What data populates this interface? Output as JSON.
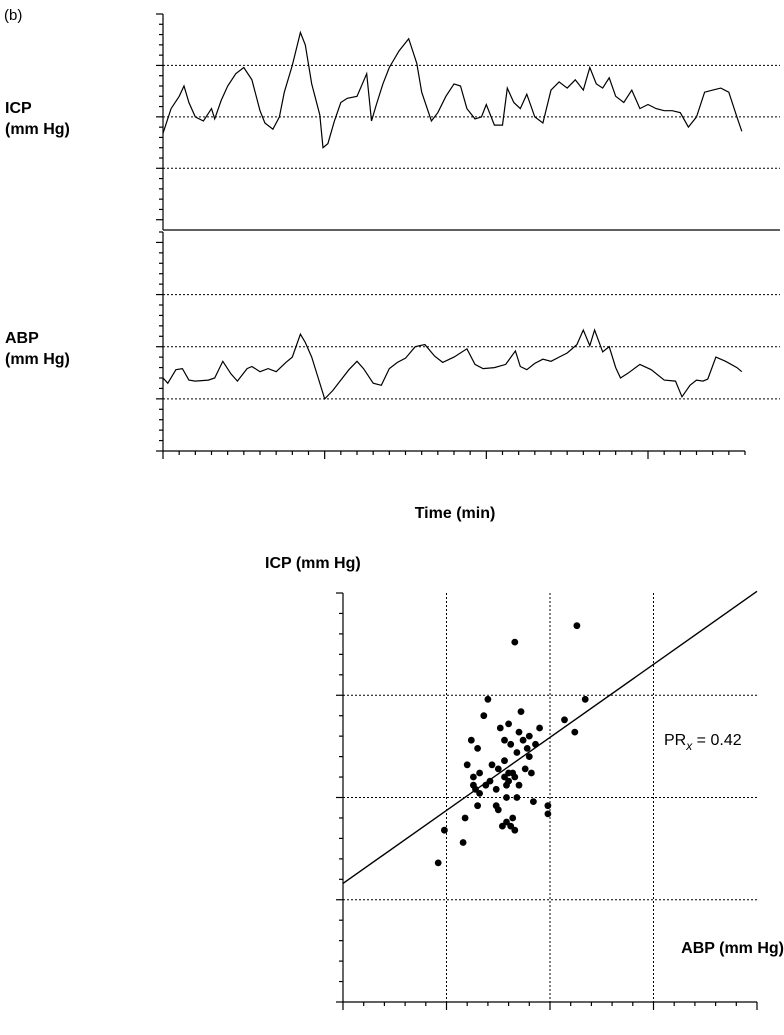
{
  "panel_label": "(b)",
  "chart_data": [
    {
      "type": "line",
      "title": "",
      "ylabel": [
        "ICP",
        "(mm Hg)"
      ],
      "xlabel": "",
      "ylim": [
        9.5,
        20
      ],
      "yticks": [
        "20",
        "17.5",
        "15",
        "12.5",
        "10"
      ],
      "ytick_values": [
        20,
        17.5,
        15,
        12.5,
        10
      ],
      "ygrid": [
        17.5,
        15,
        12.5
      ],
      "x_range": [
        0,
        3.6
      ],
      "series": [
        {
          "x": [
            0,
            0.05,
            0.1,
            0.13,
            0.16,
            0.2,
            0.25,
            0.3,
            0.32,
            0.36,
            0.4,
            0.45,
            0.5,
            0.55,
            0.6,
            0.63,
            0.68,
            0.72,
            0.75,
            0.8,
            0.85,
            0.88,
            0.92,
            0.97,
            0.99,
            1.02,
            1.06,
            1.1,
            1.14,
            1.2,
            1.26,
            1.29,
            1.32,
            1.36,
            1.4,
            1.46,
            1.52,
            1.57,
            1.6,
            1.66,
            1.7,
            1.75,
            1.8,
            1.84,
            1.88,
            1.93,
            1.97,
            2.0,
            2.05,
            2.1,
            2.13,
            2.17,
            2.21,
            2.25,
            2.3,
            2.35,
            2.4,
            2.45,
            2.5,
            2.55,
            2.6,
            2.64,
            2.68,
            2.72,
            2.76,
            2.8,
            2.85,
            2.9,
            2.95,
            3.0,
            3.05,
            3.1,
            3.15,
            3.2,
            3.25,
            3.3,
            3.35,
            3.4,
            3.45,
            3.5,
            3.55,
            3.58
          ],
          "y": [
            14.2,
            15.4,
            16.0,
            16.5,
            15.7,
            15.0,
            14.8,
            15.4,
            14.9,
            15.8,
            16.5,
            17.1,
            17.4,
            16.8,
            15.3,
            14.7,
            14.4,
            15.0,
            16.2,
            17.5,
            19.1,
            18.5,
            16.6,
            15.1,
            13.5,
            13.7,
            14.8,
            15.7,
            15.9,
            16.0,
            17.1,
            14.8,
            15.6,
            16.6,
            17.4,
            18.2,
            18.8,
            17.6,
            16.2,
            14.8,
            15.2,
            16.0,
            16.6,
            16.5,
            15.4,
            14.9,
            15.0,
            15.6,
            14.6,
            14.6,
            16.4,
            15.7,
            15.4,
            16.1,
            15.0,
            14.7,
            16.3,
            16.7,
            16.4,
            16.8,
            16.3,
            17.4,
            16.6,
            16.4,
            16.9,
            16.0,
            15.7,
            16.3,
            15.4,
            15.6,
            15.4,
            15.3,
            15.3,
            15.2,
            14.5,
            15.0,
            16.2,
            16.3,
            16.4,
            16.2,
            15.0,
            14.3
          ]
        }
      ]
    },
    {
      "type": "line",
      "title": "",
      "ylabel": [
        "ABP",
        "(mm Hg)"
      ],
      "xlabel": "Time (min)",
      "ylim": [
        60,
        81
      ],
      "yticks": [
        "80",
        "75",
        "70",
        "65",
        "60"
      ],
      "ytick_values": [
        80,
        75,
        70,
        65,
        60
      ],
      "ygrid": [
        75,
        70,
        65
      ],
      "xlim": [
        0,
        3.6
      ],
      "xticks": [
        "0",
        "1",
        "2",
        "3"
      ],
      "xtick_values": [
        0,
        1,
        2,
        3
      ],
      "series": [
        {
          "x": [
            0,
            0.03,
            0.08,
            0.12,
            0.16,
            0.2,
            0.28,
            0.32,
            0.37,
            0.42,
            0.46,
            0.52,
            0.55,
            0.6,
            0.65,
            0.7,
            0.76,
            0.8,
            0.85,
            0.88,
            0.92,
            0.96,
            1.0,
            1.05,
            1.1,
            1.15,
            1.2,
            1.24,
            1.3,
            1.35,
            1.4,
            1.45,
            1.5,
            1.56,
            1.62,
            1.68,
            1.73,
            1.8,
            1.88,
            1.93,
            1.98,
            2.05,
            2.12,
            2.18,
            2.21,
            2.25,
            2.3,
            2.35,
            2.4,
            2.45,
            2.5,
            2.56,
            2.6,
            2.64,
            2.67,
            2.72,
            2.76,
            2.8,
            2.83,
            2.88,
            2.95,
            3.02,
            3.1,
            3.17,
            3.21,
            3.26,
            3.3,
            3.34,
            3.37,
            3.42,
            3.48,
            3.55,
            3.58
          ],
          "y": [
            67.0,
            66.5,
            67.8,
            67.9,
            66.8,
            66.7,
            66.8,
            67.0,
            68.6,
            67.4,
            66.7,
            67.9,
            68.1,
            67.6,
            67.9,
            67.6,
            68.5,
            69.0,
            71.2,
            70.4,
            69.0,
            67.0,
            65.0,
            65.8,
            66.8,
            67.8,
            68.6,
            67.9,
            66.5,
            66.3,
            67.9,
            68.5,
            68.9,
            70.0,
            70.2,
            69.1,
            68.5,
            69.0,
            69.8,
            68.3,
            67.9,
            68.0,
            68.3,
            69.6,
            68.1,
            67.8,
            68.4,
            68.8,
            68.6,
            69.0,
            69.4,
            70.2,
            71.6,
            70.1,
            71.6,
            69.5,
            70.0,
            68.0,
            67.0,
            67.5,
            68.3,
            67.8,
            66.8,
            66.7,
            65.2,
            66.3,
            66.8,
            66.7,
            66.9,
            69.0,
            68.6,
            68.0,
            67.6
          ]
        }
      ]
    },
    {
      "type": "scatter",
      "title": "",
      "ylabel": "ICP (mm Hg)",
      "xlabel": "ABP (mm Hg)",
      "xlim": [
        60,
        80
      ],
      "ylim": [
        10,
        20
      ],
      "xticks": [
        "60",
        "65",
        "70",
        "75"
      ],
      "xtick_values": [
        60,
        65,
        70,
        75
      ],
      "yticks": [
        "20",
        "17.5",
        "15",
        "12.5"
      ],
      "ytick_values": [
        20,
        17.5,
        15,
        12.5
      ],
      "xgrid": [
        65,
        70,
        75
      ],
      "ygrid": [
        17.5,
        15,
        12.5
      ],
      "annotation": {
        "text": "PR",
        "sub": "x",
        "suffix": " = 0.42"
      },
      "regression": {
        "x": [
          60,
          80
        ],
        "y": [
          12.9,
          20.04
        ]
      },
      "points": {
        "x": [
          64.6,
          64.9,
          65.8,
          65.9,
          66.0,
          66.2,
          66.3,
          66.3,
          66.5,
          66.5,
          66.6,
          66.8,
          66.9,
          67.0,
          67.1,
          67.2,
          67.4,
          67.5,
          67.5,
          67.6,
          67.7,
          67.8,
          67.8,
          67.8,
          67.9,
          67.9,
          68.0,
          68.0,
          68.1,
          68.1,
          68.2,
          68.2,
          68.3,
          68.3,
          68.4,
          68.4,
          68.5,
          68.5,
          68.6,
          68.7,
          68.8,
          68.9,
          69.0,
          69.0,
          69.1,
          69.2,
          69.3,
          69.5,
          69.9,
          69.9,
          70.7,
          71.2,
          71.3,
          71.7,
          66.4,
          67.4,
          68.0,
          68.3,
          66.6,
          67.9
        ],
        "y": [
          13.4,
          14.2,
          13.9,
          14.5,
          15.8,
          16.4,
          15.5,
          15.3,
          16.2,
          14.8,
          15.6,
          17.0,
          15.3,
          17.4,
          15.4,
          15.8,
          14.8,
          14.7,
          15.7,
          16.7,
          14.3,
          15.5,
          15.9,
          16.4,
          15.3,
          14.4,
          15.6,
          16.8,
          14.3,
          16.3,
          15.6,
          14.5,
          14.2,
          18.8,
          15.0,
          16.1,
          15.3,
          16.6,
          17.1,
          16.4,
          15.7,
          16.2,
          16.5,
          16.0,
          15.6,
          14.9,
          16.3,
          16.7,
          14.6,
          14.8,
          16.9,
          16.6,
          19.2,
          17.4,
          15.2,
          15.2,
          15.4,
          15.5,
          15.1,
          15.0
        ]
      }
    }
  ]
}
